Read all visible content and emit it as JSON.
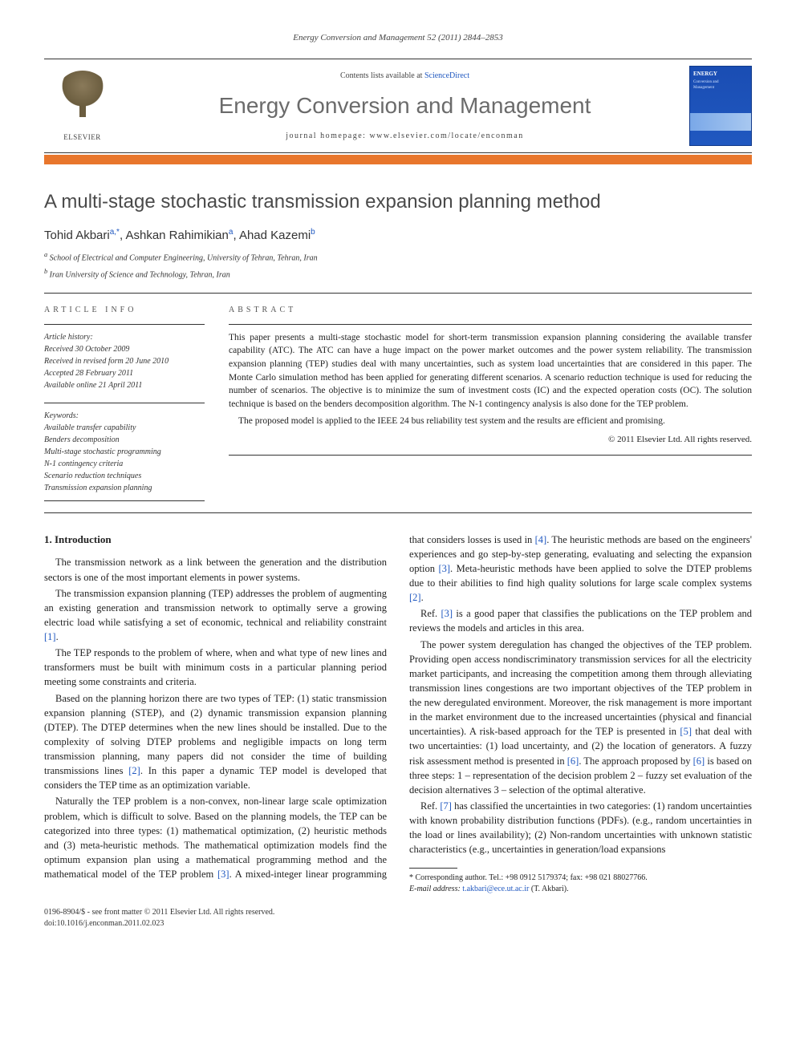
{
  "running_head": "Energy Conversion and Management 52 (2011) 2844–2853",
  "masthead": {
    "elsevier": "ELSEVIER",
    "contents_prefix": "Contents lists available at ",
    "contents_link": "ScienceDirect",
    "journal": "Energy Conversion and Management",
    "homepage_prefix": "journal homepage: ",
    "homepage": "www.elsevier.com/locate/enconman",
    "cover_title": "ENERGY",
    "cover_sub1": "Conversion and",
    "cover_sub2": "Management"
  },
  "title": "A multi-stage stochastic transmission expansion planning method",
  "authors": [
    {
      "name": "Tohid Akbari",
      "sup": "a,*"
    },
    {
      "name": "Ashkan Rahimikian",
      "sup": "a"
    },
    {
      "name": "Ahad Kazemi",
      "sup": "b"
    }
  ],
  "affiliations": [
    {
      "sup": "a",
      "text": "School of Electrical and Computer Engineering, University of Tehran, Tehran, Iran"
    },
    {
      "sup": "b",
      "text": "Iran University of Science and Technology, Tehran, Iran"
    }
  ],
  "info": {
    "label": "ARTICLE INFO",
    "history_title": "Article history:",
    "history": [
      "Received 30 October 2009",
      "Received in revised form 20 June 2010",
      "Accepted 28 February 2011",
      "Available online 21 April 2011"
    ],
    "keywords_title": "Keywords:",
    "keywords": [
      "Available transfer capability",
      "Benders decomposition",
      "Multi-stage stochastic programming",
      "N-1 contingency criteria",
      "Scenario reduction techniques",
      "Transmission expansion planning"
    ]
  },
  "abstract": {
    "label": "ABSTRACT",
    "p1": "This paper presents a multi-stage stochastic model for short-term transmission expansion planning considering the available transfer capability (ATC). The ATC can have a huge impact on the power market outcomes and the power system reliability. The transmission expansion planning (TEP) studies deal with many uncertainties, such as system load uncertainties that are considered in this paper. The Monte Carlo simulation method has been applied for generating different scenarios. A scenario reduction technique is used for reducing the number of scenarios. The objective is to minimize the sum of investment costs (IC) and the expected operation costs (OC). The solution technique is based on the benders decomposition algorithm. The N-1 contingency analysis is also done for the TEP problem.",
    "p2": "The proposed model is applied to the IEEE 24 bus reliability test system and the results are efficient and promising.",
    "copyright": "© 2011 Elsevier Ltd. All rights reserved."
  },
  "body": {
    "h1": "1. Introduction",
    "paras": [
      "The transmission network as a link between the generation and the distribution sectors is one of the most important elements in power systems.",
      "The transmission expansion planning (TEP) addresses the problem of augmenting an existing generation and transmission network to optimally serve a growing electric load while satisfying a set of economic, technical and reliability constraint [1].",
      "The TEP responds to the problem of where, when and what type of new lines and transformers must be built with minimum costs in a particular planning period meeting some constraints and criteria.",
      "Based on the planning horizon there are two types of TEP: (1) static transmission expansion planning (STEP), and (2) dynamic transmission expansion planning (DTEP). The DTEP determines when the new lines should be installed. Due to the complexity of solving DTEP problems and negligible impacts on long term transmission planning, many papers did not consider the time of building transmissions lines [2]. In this paper a dynamic TEP model is developed that considers the TEP time as an optimization variable.",
      "Naturally the TEP problem is a non-convex, non-linear large scale optimization problem, which is difficult to solve. Based on the planning models, the TEP can be categorized into three types: (1) mathematical optimization, (2) heuristic methods and (3) meta-heuristic methods. The mathematical optimization models find the optimum expansion plan using a mathematical programming method and the mathematical model of the TEP problem [3]. A mixed-integer linear programming that considers losses is used in [4]. The heuristic methods are based on the engineers' experiences and go step-by-step generating, evaluating and selecting the expansion option [3]. Meta-heuristic methods have been applied to solve the DTEP problems due to their abilities to find high quality solutions for large scale complex systems [2].",
      "Ref. [3] is a good paper that classifies the publications on the TEP problem and reviews the models and articles in this area.",
      "The power system deregulation has changed the objectives of the TEP problem. Providing open access nondiscriminatory transmission services for all the electricity market participants, and increasing the competition among them through alleviating transmission lines congestions are two important objectives of the TEP problem in the new deregulated environment. Moreover, the risk management is more important in the market environment due to the increased uncertainties (physical and financial uncertainties). A risk-based approach for the TEP is presented in [5] that deal with two uncertainties: (1) load uncertainty, and (2) the location of generators. A fuzzy risk assessment method is presented in [6]. The approach proposed by [6] is based on three steps: 1 – representation of the decision problem 2 – fuzzy set evaluation of the decision alternatives 3 – selection of the optimal alterative.",
      "Ref. [7] has classified the uncertainties in two categories: (1) random uncertainties with known probability distribution functions (PDFs). (e.g., random uncertainties in the load or lines availability); (2) Non-random uncertainties with unknown statistic characteristics (e.g., uncertainties in generation/load expansions"
    ]
  },
  "footnote": {
    "marker": "*",
    "text": "Corresponding author. Tel.: +98 0912 5179374; fax: +98 021 88027766.",
    "email_label": "E-mail address:",
    "email": "t.akbari@ece.ut.ac.ir",
    "email_owner": "(T. Akbari)."
  },
  "bottom": {
    "line1": "0196-8904/$ - see front matter © 2011 Elsevier Ltd. All rights reserved.",
    "line2": "doi:10.1016/j.enconman.2011.02.023"
  },
  "colors": {
    "orange": "#e8762c",
    "link": "#2058c0",
    "cover_bg": "#1a4db3",
    "grey_title": "#6b6b6b"
  }
}
